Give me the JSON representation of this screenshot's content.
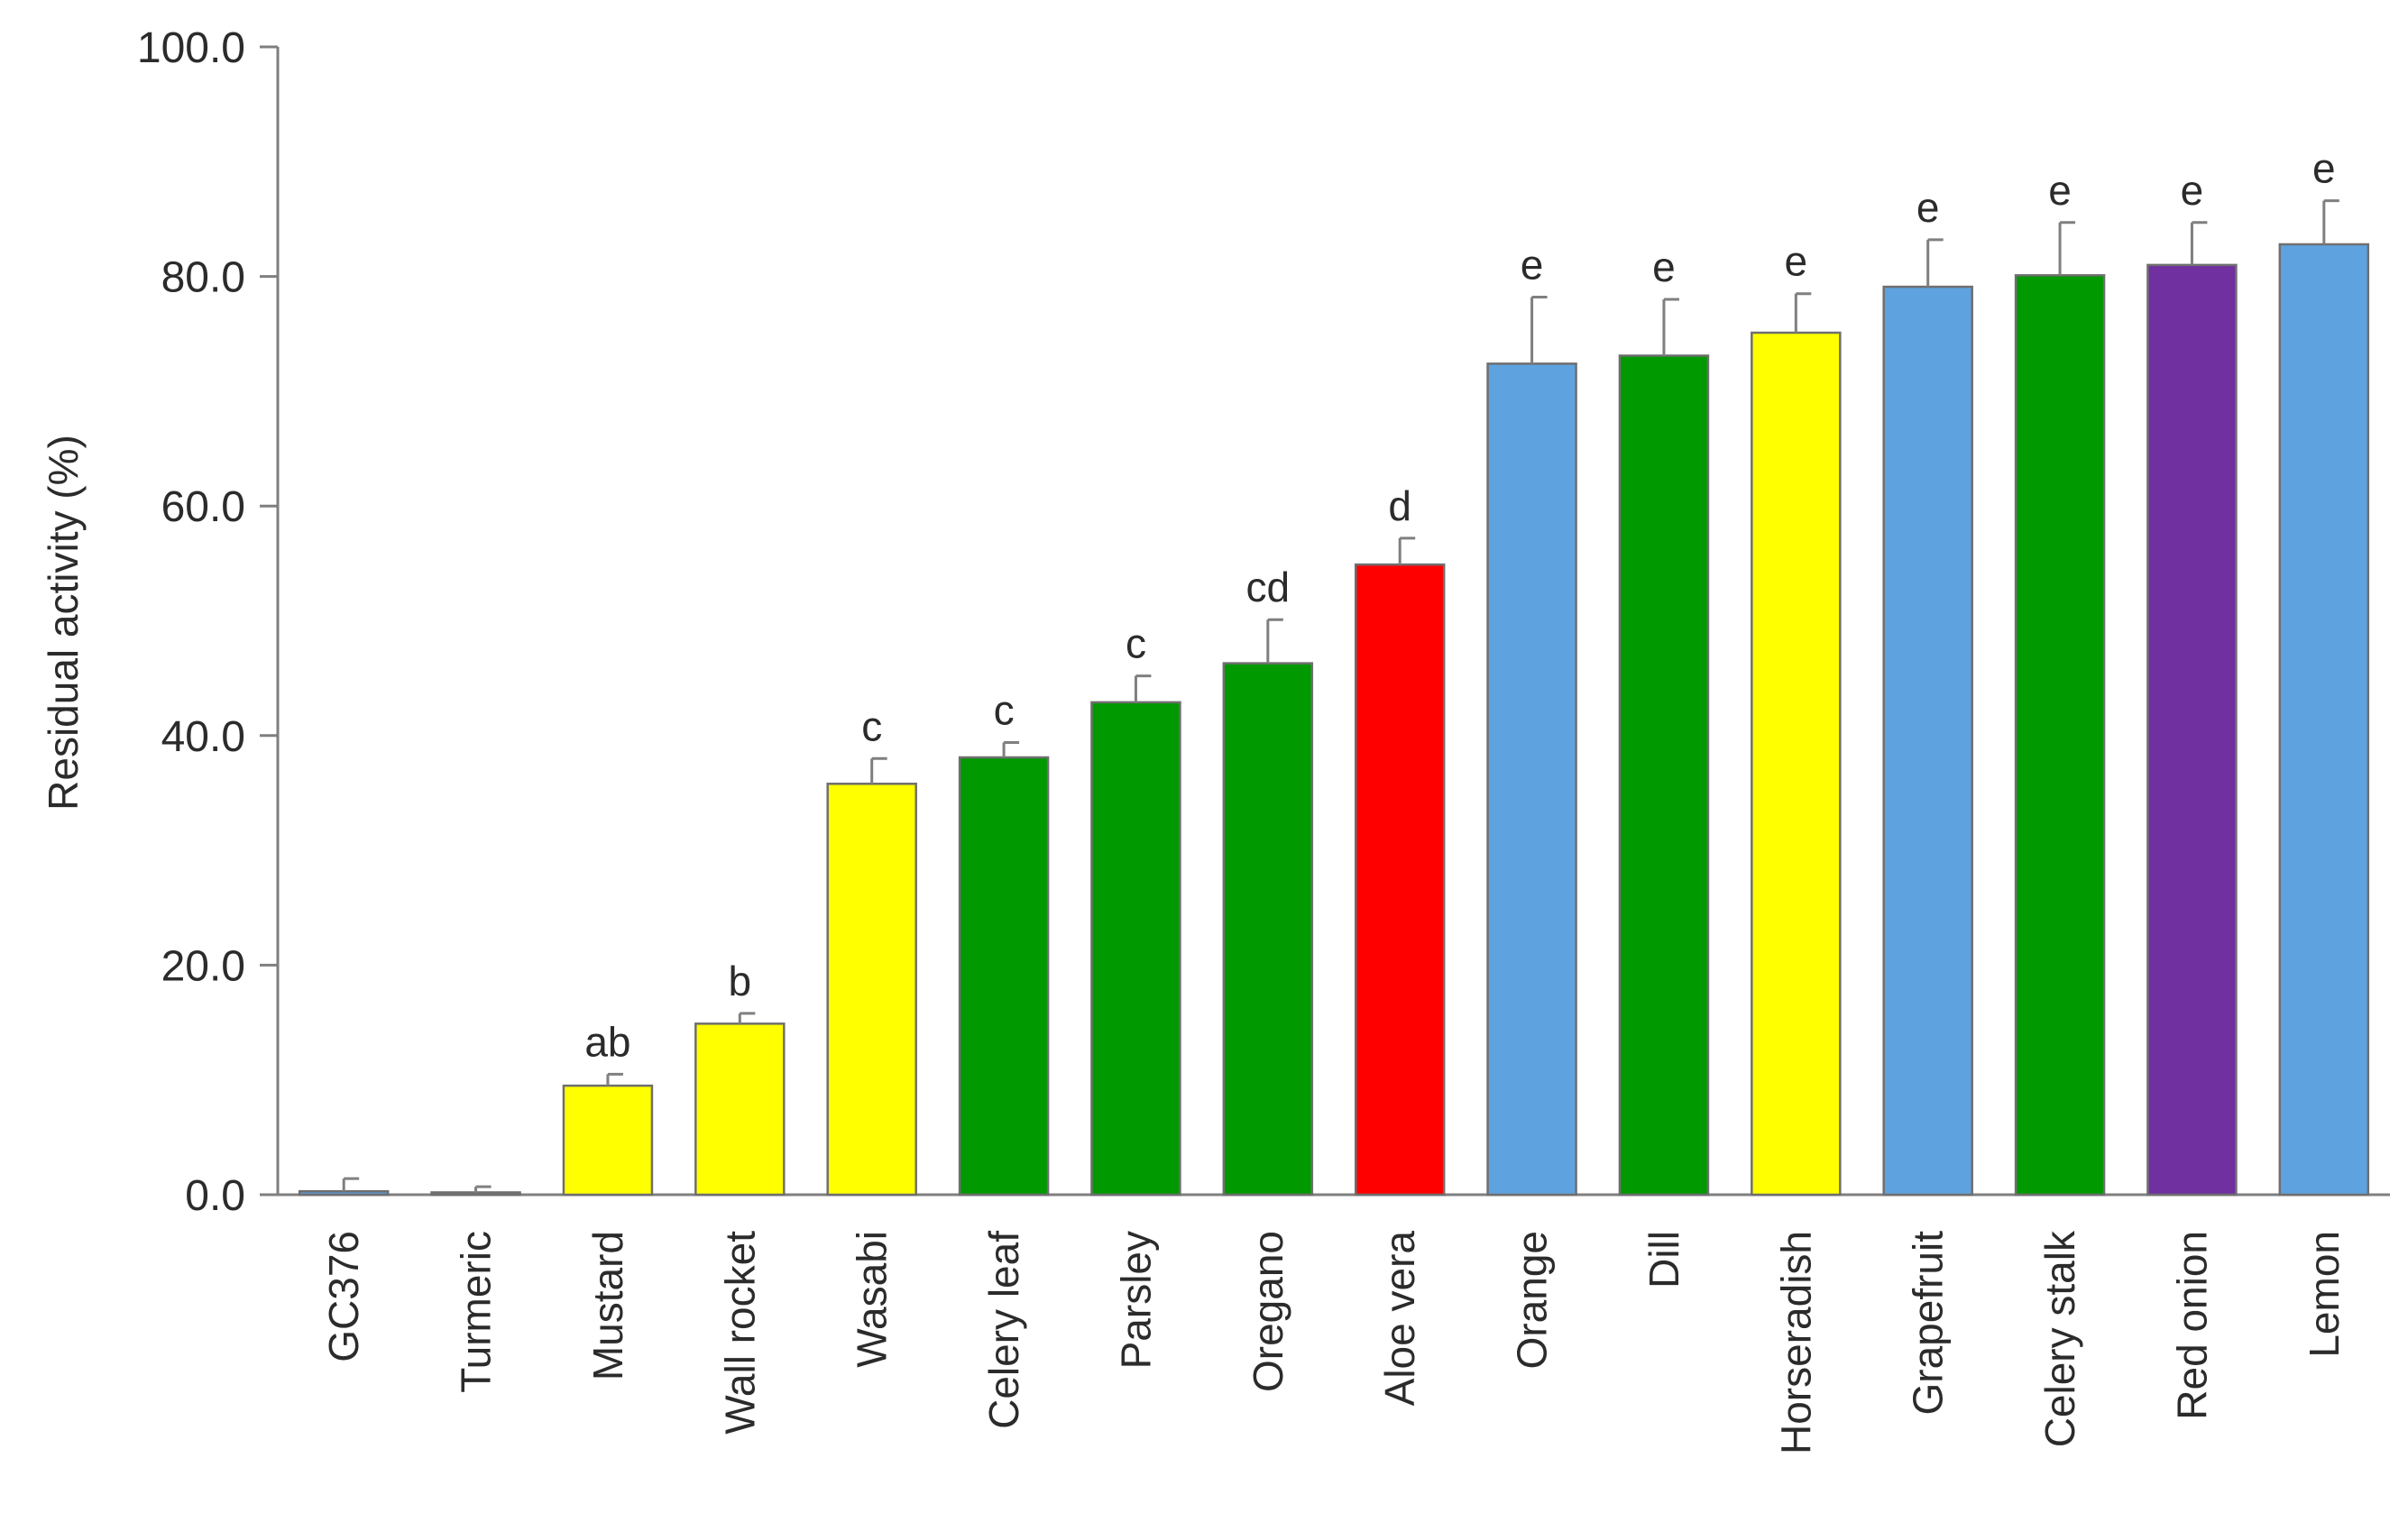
{
  "chart_data": {
    "type": "bar",
    "ylabel": "Residual activity (%)",
    "xlabel": "",
    "ylim": [
      0,
      100
    ],
    "yticks": [
      "0.0",
      "20.0",
      "40.0",
      "60.0",
      "80.0",
      "100.0"
    ],
    "grid": false,
    "categories": [
      "GC376",
      "Turmeric",
      "Mustard",
      "Wall rocket",
      "Wasabi",
      "Celery leaf",
      "Parsley",
      "Oregano",
      "Aloe vera",
      "Orange",
      "Dill",
      "Horseradish",
      "Grapefruit",
      "Celery stalk",
      "Red onion",
      "Lemon"
    ],
    "values": [
      0.3,
      0.2,
      9.5,
      14.9,
      35.8,
      38.1,
      42.9,
      46.3,
      54.9,
      72.4,
      73.1,
      75.1,
      79.1,
      80.1,
      81.0,
      82.8
    ],
    "errors": [
      1.1,
      0.5,
      1.0,
      0.9,
      2.2,
      1.3,
      2.3,
      3.8,
      2.3,
      5.8,
      4.9,
      3.4,
      4.1,
      4.6,
      3.7,
      3.8
    ],
    "significance_labels": [
      "",
      "",
      "ab",
      "b",
      "c",
      "c",
      "c",
      "cd",
      "d",
      "e",
      "e",
      "e",
      "e",
      "e",
      "e",
      "e"
    ],
    "bar_colors": [
      "#5b9bd5",
      "#5b9bd5",
      "#ffff00",
      "#ffff00",
      "#ffff00",
      "#009900",
      "#009900",
      "#009900",
      "#ff0000",
      "#5ea3e0",
      "#009900",
      "#ffff00",
      "#5ea3e0",
      "#009900",
      "#7030a0",
      "#5ea3e0"
    ]
  }
}
